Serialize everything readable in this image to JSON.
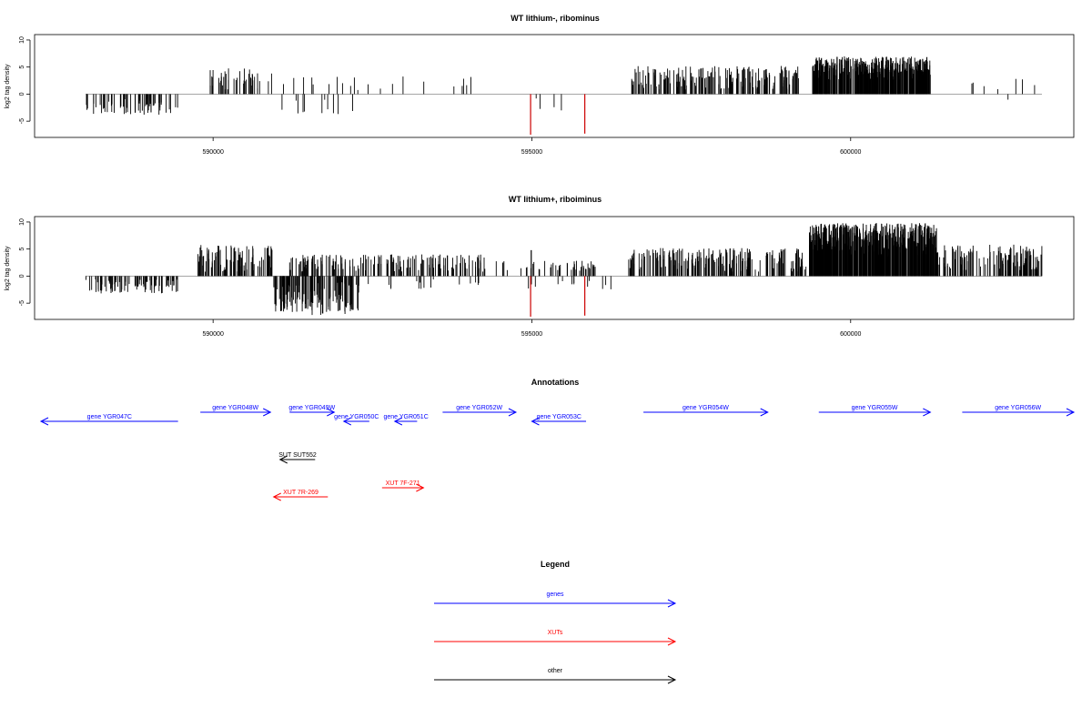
{
  "colors": {
    "signal": "#000000",
    "highlight": "#cc0000",
    "genes": "#0000ff",
    "xuts": "#ff0000",
    "other": "#000000",
    "axis": "#000000",
    "baseline": "#999999"
  },
  "chart_data": [
    {
      "type": "bar",
      "title": "WT lithium-, ribominus",
      "ylabel": "log2 tag density",
      "xlim": [
        587200,
        603500
      ],
      "ylim": [
        -8,
        11
      ],
      "xticks": [
        590000,
        595000,
        600000
      ],
      "xtick_labels": [
        "590000",
        "595000",
        "600000"
      ],
      "yticks": [
        -5,
        0,
        5,
        10
      ],
      "ytick_labels": [
        "-5",
        "0",
        "5",
        "10"
      ],
      "grid": false,
      "segments": [
        {
          "start": 588000,
          "end": 589450,
          "min": 0.8,
          "max": 3.8,
          "density": 0.6,
          "sign": -1
        },
        {
          "start": 589850,
          "end": 590950,
          "min": 0.8,
          "max": 4.8,
          "density": 0.55,
          "sign": 1
        },
        {
          "start": 591050,
          "end": 592300,
          "min": 0.6,
          "max": 3.2,
          "density": 0.12,
          "sign": 1
        },
        {
          "start": 591050,
          "end": 592300,
          "min": 0.6,
          "max": 3.8,
          "density": 0.12,
          "sign": -1
        },
        {
          "start": 592300,
          "end": 594400,
          "min": 0.6,
          "max": 3.6,
          "density": 0.07,
          "sign": 1
        },
        {
          "start": 594900,
          "end": 595800,
          "min": 0.6,
          "max": 3.2,
          "density": 0.07,
          "sign": -1
        },
        {
          "start": 596550,
          "end": 599200,
          "min": 0.8,
          "max": 5.2,
          "density": 1.0,
          "sign": 1
        },
        {
          "start": 599400,
          "end": 601250,
          "min": 2.5,
          "max": 7.0,
          "density": 3.0,
          "sign": 1
        },
        {
          "start": 601800,
          "end": 602900,
          "min": 0.6,
          "max": 3.2,
          "density": 0.09,
          "sign": 1
        },
        {
          "start": 602400,
          "end": 602500,
          "min": 0.6,
          "max": 1.2,
          "density": 0.05,
          "sign": -1
        }
      ],
      "spikes": [
        {
          "x": 594980,
          "value": -7.5,
          "color": "#cc0000"
        },
        {
          "x": 595830,
          "value": -7.3,
          "color": "#cc0000"
        }
      ]
    },
    {
      "type": "bar",
      "title": "WT lithium+, riboiminus",
      "ylabel": "log2 tag density",
      "xlim": [
        587200,
        603500
      ],
      "ylim": [
        -8,
        11
      ],
      "xticks": [
        590000,
        595000,
        600000
      ],
      "xtick_labels": [
        "590000",
        "595000",
        "600000"
      ],
      "yticks": [
        -5,
        0,
        5,
        10
      ],
      "ytick_labels": [
        "-5",
        "0",
        "5",
        "10"
      ],
      "grid": false,
      "segments": [
        {
          "start": 588000,
          "end": 589450,
          "min": 0.6,
          "max": 3.2,
          "density": 0.9,
          "sign": -1
        },
        {
          "start": 589750,
          "end": 590950,
          "min": 0.8,
          "max": 5.8,
          "density": 1.1,
          "sign": 1
        },
        {
          "start": 590950,
          "end": 592300,
          "min": 0.8,
          "max": 7.2,
          "density": 1.4,
          "sign": -1
        },
        {
          "start": 591200,
          "end": 594300,
          "min": 0.8,
          "max": 4.0,
          "density": 0.75,
          "sign": 1
        },
        {
          "start": 592300,
          "end": 594200,
          "min": 0.6,
          "max": 2.4,
          "density": 0.12,
          "sign": -1
        },
        {
          "start": 594400,
          "end": 596000,
          "min": 0.8,
          "max": 3.0,
          "density": 0.4,
          "sign": 1
        },
        {
          "start": 594900,
          "end": 596400,
          "min": 0.6,
          "max": 2.6,
          "density": 0.12,
          "sign": -1
        },
        {
          "start": 596500,
          "end": 599300,
          "min": 0.8,
          "max": 5.2,
          "density": 1.1,
          "sign": 1
        },
        {
          "start": 599350,
          "end": 601350,
          "min": 3.5,
          "max": 9.8,
          "density": 3.5,
          "sign": 1
        },
        {
          "start": 601350,
          "end": 603000,
          "min": 0.8,
          "max": 5.8,
          "density": 1.1,
          "sign": 1
        }
      ],
      "spikes": [
        {
          "x": 594980,
          "value": -7.5,
          "color": "#cc0000"
        },
        {
          "x": 595830,
          "value": -7.3,
          "color": "#cc0000"
        },
        {
          "x": 594990,
          "value": 4.8,
          "color": "#000000"
        }
      ]
    }
  ],
  "annotations": {
    "title": "Annotations",
    "xlim": [
      587200,
      603500
    ],
    "features": [
      {
        "label": "gene YGR047C",
        "start": 587300,
        "end": 589450,
        "strand": "-",
        "row": 1,
        "category": "genes"
      },
      {
        "label": "gene YGR048W",
        "start": 589800,
        "end": 590900,
        "strand": "+",
        "row": 0,
        "category": "genes"
      },
      {
        "label": "gene YGR049W",
        "start": 591200,
        "end": 591900,
        "strand": "+",
        "row": 0,
        "category": "genes"
      },
      {
        "label": "gene YGR050C",
        "start": 592050,
        "end": 592450,
        "strand": "-",
        "row": 1,
        "category": "genes"
      },
      {
        "label": "gene YGR051C",
        "start": 592850,
        "end": 593200,
        "strand": "-",
        "row": 1,
        "category": "genes"
      },
      {
        "label": "gene YGR052W",
        "start": 593600,
        "end": 594750,
        "strand": "+",
        "row": 0,
        "category": "genes"
      },
      {
        "label": "gene YGR053C",
        "start": 595000,
        "end": 595850,
        "strand": "-",
        "row": 1,
        "category": "genes"
      },
      {
        "label": "gene YGR054W",
        "start": 596750,
        "end": 598700,
        "strand": "+",
        "row": 0,
        "category": "genes"
      },
      {
        "label": "gene YGR055W",
        "start": 599500,
        "end": 601250,
        "strand": "+",
        "row": 0,
        "category": "genes"
      },
      {
        "label": "gene YGR056W",
        "start": 601750,
        "end": 603500,
        "strand": "+",
        "row": 0,
        "category": "genes"
      },
      {
        "label": "SUT SUT552",
        "start": 591050,
        "end": 591600,
        "strand": "-",
        "row": 2,
        "category": "other"
      },
      {
        "label": "XUT 7R-269",
        "start": 590950,
        "end": 591800,
        "strand": "-",
        "row": 4,
        "category": "xuts"
      },
      {
        "label": "XUT 7F-271",
        "start": 592650,
        "end": 593300,
        "strand": "+",
        "row": 3,
        "category": "xuts"
      }
    ]
  },
  "legend": {
    "title": "Legend",
    "items": [
      {
        "label": "genes",
        "category": "genes"
      },
      {
        "label": "XUTs",
        "category": "xuts"
      },
      {
        "label": "other",
        "category": "other"
      }
    ]
  }
}
